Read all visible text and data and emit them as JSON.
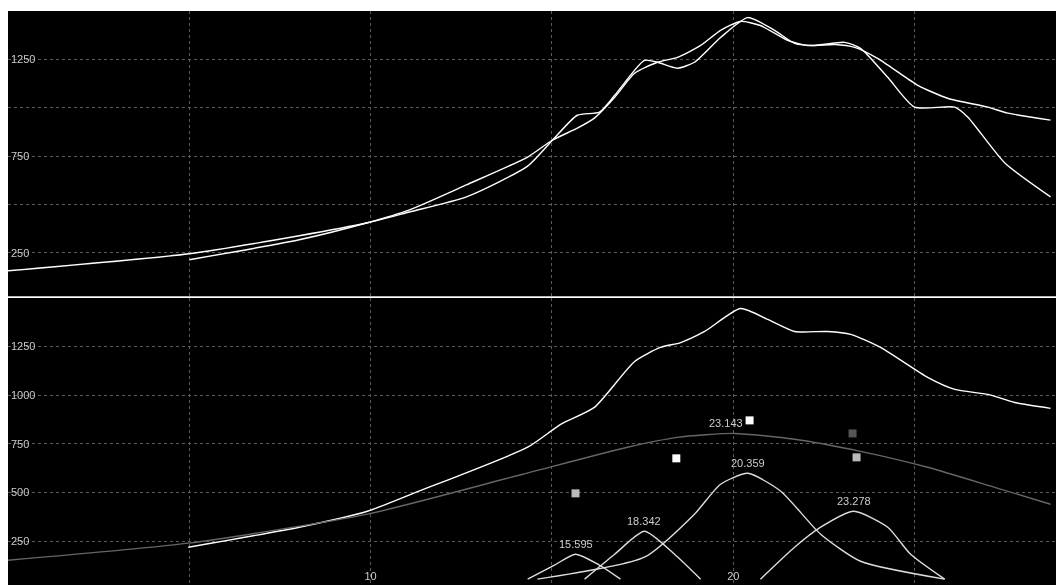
{
  "chart_data": [
    {
      "type": "line",
      "xlim": [
        0,
        28.9
      ],
      "ylim": [
        25,
        1500
      ],
      "xticks": [
        {
          "value": 5,
          "label": null
        },
        {
          "value": 10,
          "label": null
        },
        {
          "value": 15,
          "label": null
        },
        {
          "value": 20,
          "label": null
        },
        {
          "value": 25,
          "label": null
        }
      ],
      "yticks": [
        250,
        {
          "value": 500,
          "label": null
        },
        750,
        {
          "value": 1000,
          "label": null
        },
        1250
      ],
      "grid": true,
      "tick_labels": "y",
      "series": [
        {
          "color": "#ffffff",
          "x": [
            5.0,
            8.03,
            9.91,
            11.07,
            12.64,
            14.33,
            15.02,
            15.7,
            16.17,
            16.73,
            17.28,
            17.91,
            18.46,
            19.1,
            19.65,
            20.2,
            20.75,
            21.5,
            22.05,
            22.8,
            23.35,
            23.98,
            25.09,
            25.91,
            27.02,
            27.57,
            28.75
          ],
          "values": [
            214,
            317,
            405,
            472,
            601,
            745,
            833,
            894,
            946,
            1054,
            1178,
            1235,
            1260,
            1322,
            1400,
            1446,
            1425,
            1348,
            1322,
            1327,
            1312,
            1255,
            1116,
            1049,
            1003,
            972,
            936
          ]
        },
        {
          "color": "#ffffff",
          "x": [
            0.0,
            5.0,
            8.03,
            9.91,
            11.07,
            12.64,
            14.33,
            15.02,
            15.7,
            16.31,
            16.73,
            17.55,
            17.91,
            18.46,
            18.93,
            19.65,
            20.4,
            21.14,
            21.69,
            22.24,
            23.07,
            23.51,
            24.26,
            25.0,
            26.11,
            26.47,
            27.49,
            28.75
          ],
          "values": [
            157,
            245,
            338,
            405,
            461,
            539,
            698,
            833,
            961,
            977,
            1064,
            1245,
            1235,
            1204,
            1235,
            1363,
            1466,
            1400,
            1333,
            1322,
            1338,
            1307,
            1157,
            1003,
            1003,
            951,
            714,
            539
          ]
        }
      ]
    },
    {
      "type": "line",
      "xlim": [
        0,
        28.9
      ],
      "ylim": [
        25,
        1500
      ],
      "xticks": [
        {
          "value": 5,
          "label": null
        },
        10,
        {
          "value": 15,
          "label": null
        },
        20,
        {
          "value": 25,
          "label": null
        }
      ],
      "yticks": [
        250,
        500,
        750,
        1000,
        1250
      ],
      "grid": true,
      "series": [
        {
          "color": "#ffffff",
          "x": [
            4.97,
            8.03,
            9.91,
            11.26,
            14.33,
            15.24,
            16.17,
            17.28,
            17.99,
            18.55,
            19.21,
            20.2,
            20.95,
            21.69,
            22.6,
            23.24,
            24.06,
            25.36,
            26.11,
            27.02,
            27.76,
            28.75
          ],
          "values": [
            219,
            322,
            404,
            502,
            733,
            851,
            938,
            1174,
            1246,
            1271,
            1328,
            1446,
            1390,
            1328,
            1328,
            1313,
            1246,
            1092,
            1030,
            1005,
            963,
            933
          ]
        },
        {
          "color": "#666666",
          "x": [
            0.0,
            4.97,
            9.91,
            14.19,
            17.08,
            18.46,
            20.03,
            21.69,
            23.51,
            25.36,
            27.21,
            28.75
          ],
          "values": [
            152,
            240,
            389,
            594,
            733,
            784,
            804,
            774,
            712,
            630,
            527,
            440
          ]
        },
        {
          "color": "#dddddd",
          "x": [
            14.33,
            15.07,
            15.65,
            16.31,
            16.89
          ],
          "values": [
            55,
            127,
            183,
            127,
            55
          ]
        },
        {
          "color": "#dddddd",
          "x": [
            15.9,
            16.73,
            17.55,
            18.38,
            19.1
          ],
          "values": [
            55,
            183,
            301,
            183,
            55
          ]
        },
        {
          "color": "#dddddd",
          "x": [
            14.6,
            17.55,
            18.93,
            19.65,
            20.4,
            21.31,
            22.41,
            23.51,
            25.83
          ],
          "values": [
            55,
            168,
            389,
            543,
            599,
            507,
            286,
            147,
            55
          ]
        },
        {
          "color": "#dddddd",
          "x": [
            20.75,
            21.69,
            22.41,
            23.32,
            24.26,
            24.89,
            25.83
          ],
          "values": [
            55,
            219,
            322,
            404,
            322,
            183,
            55
          ]
        },
        {
          "type": "scatter",
          "marker": "square",
          "colors": [
            "#bbbbbb",
            "#ffffff",
            "#ffffff",
            "#555555",
            "#bbbbbb"
          ],
          "x": [
            15.65,
            18.43,
            20.45,
            23.29,
            23.4
          ],
          "values": [
            496,
            676,
            871,
            804,
            681
          ]
        }
      ],
      "annotations": [
        {
          "text": "15.595",
          "x": 15.65,
          "y": 183
        },
        {
          "text": "18.342",
          "x": 17.55,
          "y": 301
        },
        {
          "text": "20.359",
          "x": 20.4,
          "y": 599
        },
        {
          "text": "23.278",
          "x": 23.32,
          "y": 404
        },
        {
          "text": "23.143",
          "x": 19.8,
          "y": 804
        }
      ]
    }
  ]
}
